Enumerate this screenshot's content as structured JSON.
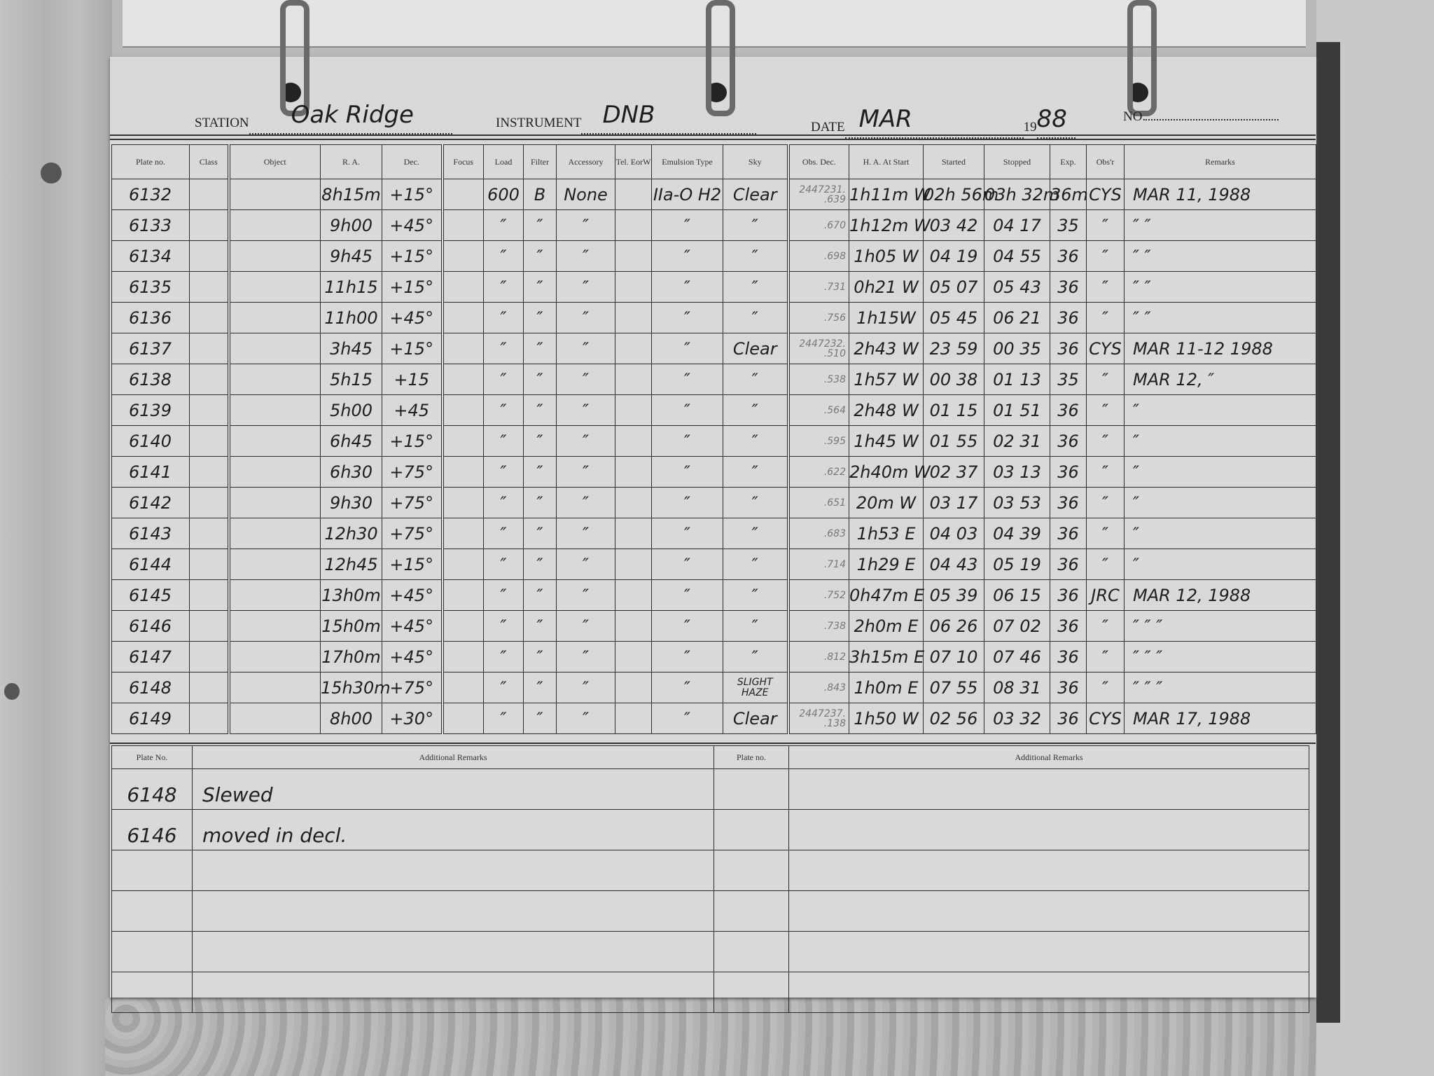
{
  "form": {
    "station_label": "STATION",
    "station_value": "Oak Ridge",
    "instrument_label": "INSTRUMENT",
    "instrument_value": "DNB",
    "date_label": "DATE",
    "date_value": "MAR",
    "year_prefix": "19",
    "year_value": "88",
    "no_label": "NO."
  },
  "columns": [
    "Plate no.",
    "Class",
    "Object",
    "R. A.",
    "Dec.",
    "Focus",
    "Load",
    "Filter",
    "Accessory",
    "Tel. EorW",
    "Emulsion Type",
    "Sky",
    "Obs. Dec.",
    "H. A. At Start",
    "Started",
    "Stopped",
    "Exp.",
    "Obs'r",
    "Remarks"
  ],
  "rows": [
    {
      "plate": "6132",
      "ra": "8h15m",
      "dec": "+15°",
      "load": "600",
      "filter": "B",
      "accessory": "None",
      "emulsion": "IIa-O H2",
      "sky": "Clear",
      "obs_dec_top": "2447231.",
      "obs_dec": ".639",
      "ha": "1h11m W",
      "started": "02h 56m",
      "stopped": "03h 32m",
      "exp": "36m",
      "obsr": "CYS",
      "remarks": "MAR 11,   1988"
    },
    {
      "plate": "6133",
      "ra": "9h00",
      "dec": "+45°",
      "load": "″",
      "filter": "″",
      "accessory": "″",
      "emulsion": "″",
      "sky": "″",
      "obs_dec": ".670",
      "ha": "1h12m W",
      "started": "03 42",
      "stopped": "04 17",
      "exp": "35",
      "obsr": "″",
      "remarks": "     ″          ″"
    },
    {
      "plate": "6134",
      "ra": "9h45",
      "dec": "+15°",
      "load": "″",
      "filter": "″",
      "accessory": "″",
      "emulsion": "″",
      "sky": "″",
      "obs_dec": ".698",
      "ha": "1h05 W",
      "started": "04 19",
      "stopped": "04 55",
      "exp": "36",
      "obsr": "″",
      "remarks": "     ″          ″"
    },
    {
      "plate": "6135",
      "ra": "11h15",
      "dec": "+15°",
      "load": "″",
      "filter": "″",
      "accessory": "″",
      "emulsion": "″",
      "sky": "″",
      "obs_dec": ".731",
      "ha": "0h21 W",
      "started": "05 07",
      "stopped": "05 43",
      "exp": "36",
      "obsr": "″",
      "remarks": "     ″          ″"
    },
    {
      "plate": "6136",
      "ra": "11h00",
      "dec": "+45°",
      "load": "″",
      "filter": "″",
      "accessory": "″",
      "emulsion": "″",
      "sky": "″",
      "obs_dec": ".756",
      "ha": "1h15W",
      "started": "05 45",
      "stopped": "06 21",
      "exp": "36",
      "obsr": "″",
      "remarks": "     ″        ″"
    },
    {
      "plate": "6137",
      "ra": "3h45",
      "dec": "+15°",
      "load": "″",
      "filter": "″",
      "accessory": "″",
      "emulsion": "″",
      "sky": "Clear",
      "obs_dec_top": "2447232.",
      "obs_dec": ".510",
      "ha": "2h43 W",
      "started": "23 59",
      "stopped": "00 35",
      "exp": "36",
      "obsr": "CYS",
      "remarks": "MAR 11-12   1988"
    },
    {
      "plate": "6138",
      "ra": "5h15",
      "dec": "+15",
      "load": "″",
      "filter": "″",
      "accessory": "″",
      "emulsion": "″",
      "sky": "″",
      "obs_dec": ".538",
      "ha": "1h57 W",
      "started": "00 38",
      "stopped": "01 13",
      "exp": "35",
      "obsr": "″",
      "remarks": "MAR 12,     ″"
    },
    {
      "plate": "6139",
      "ra": "5h00",
      "dec": "+45",
      "load": "″",
      "filter": "″",
      "accessory": "″",
      "emulsion": "″",
      "sky": "″",
      "obs_dec": ".564",
      "ha": "2h48 W",
      "started": "01 15",
      "stopped": "01 51",
      "exp": "36",
      "obsr": "″",
      "remarks": "       ″"
    },
    {
      "plate": "6140",
      "ra": "6h45",
      "dec": "+15°",
      "load": "″",
      "filter": "″",
      "accessory": "″",
      "emulsion": "″",
      "sky": "″",
      "obs_dec": ".595",
      "ha": "1h45 W",
      "started": "01 55",
      "stopped": "02 31",
      "exp": "36",
      "obsr": "″",
      "remarks": "      ″"
    },
    {
      "plate": "6141",
      "ra": "6h30",
      "dec": "+75°",
      "load": "″",
      "filter": "″",
      "accessory": "″",
      "emulsion": "″",
      "sky": "″",
      "obs_dec": ".622",
      "ha": "2h40m W",
      "started": "02 37",
      "stopped": "03 13",
      "exp": "36",
      "obsr": "″",
      "remarks": "      ″"
    },
    {
      "plate": "6142",
      "ra": "9h30",
      "dec": "+75°",
      "load": "″",
      "filter": "″",
      "accessory": "″",
      "emulsion": "″",
      "sky": "″",
      "obs_dec": ".651",
      "ha": "20m W",
      "started": "03 17",
      "stopped": "03 53",
      "exp": "36",
      "obsr": "″",
      "remarks": "      ″"
    },
    {
      "plate": "6143",
      "ra": "12h30",
      "dec": "+75°",
      "load": "″",
      "filter": "″",
      "accessory": "″",
      "emulsion": "″",
      "sky": "″",
      "obs_dec": ".683",
      "ha": "1h53 E",
      "started": "04 03",
      "stopped": "04 39",
      "exp": "36",
      "obsr": "″",
      "remarks": "      ″"
    },
    {
      "plate": "6144",
      "ra": "12h45",
      "dec": "+15°",
      "load": "″",
      "filter": "″",
      "accessory": "″",
      "emulsion": "″",
      "sky": "″",
      "obs_dec": ".714",
      "ha": "1h29 E",
      "started": "04 43",
      "stopped": "05 19",
      "exp": "36",
      "obsr": "″",
      "remarks": "      ″"
    },
    {
      "plate": "6145",
      "ra": "13h0m",
      "dec": "+45°",
      "load": "″",
      "filter": "″",
      "accessory": "″",
      "emulsion": "″",
      "sky": "″",
      "obs_dec": ".752",
      "ha": "0h47m E",
      "started": "05 39",
      "stopped": "06 15",
      "exp": "36",
      "obsr": "JRC",
      "remarks": "MAR 12, 1988"
    },
    {
      "plate": "6146",
      "ra": "15h0m",
      "dec": "+45°",
      "load": "″",
      "filter": "″",
      "accessory": "″",
      "emulsion": "″",
      "sky": "″",
      "obs_dec": ".738",
      "ha": "2h0m E",
      "started": "06 26",
      "stopped": "07 02",
      "exp": "36",
      "obsr": "″",
      "remarks": "  ″      ″      ″"
    },
    {
      "plate": "6147",
      "ra": "17h0m",
      "dec": "+45°",
      "load": "″",
      "filter": "″",
      "accessory": "″",
      "emulsion": "″",
      "sky": "″",
      "obs_dec": ".812",
      "ha": "3h15m E",
      "started": "07 10",
      "stopped": "07 46",
      "exp": "36",
      "obsr": "″",
      "remarks": "  ″      ″      ″"
    },
    {
      "plate": "6148",
      "ra": "15h30m",
      "dec": "+75°",
      "load": "″",
      "filter": "″",
      "accessory": "″",
      "emulsion": "″",
      "sky": "SLIGHT HAZE",
      "obs_dec": ".843",
      "ha": "1h0m E",
      "started": "07 55",
      "stopped": "08 31",
      "exp": "36",
      "obsr": "″",
      "remarks": "  ″      ″      ″"
    },
    {
      "plate": "6149",
      "ra": "8h00",
      "dec": "+30°",
      "load": "″",
      "filter": "″",
      "accessory": "″",
      "emulsion": "″",
      "sky": "Clear",
      "obs_dec_top": "2447237.",
      "obs_dec": ".138",
      "ha": "1h50 W",
      "started": "02 56",
      "stopped": "03 32",
      "exp": "36",
      "obsr": "CYS",
      "remarks": "MAR 17,   1988"
    }
  ],
  "additional": {
    "plate_label_left": "Plate No.",
    "remarks_label_left": "Additional Remarks",
    "plate_label_right": "Plate no.",
    "remarks_label_right": "Additional Remarks",
    "entries": [
      {
        "plate": "6148",
        "text": "Slewed"
      },
      {
        "plate": "6146",
        "text": "moved in decl."
      }
    ]
  }
}
